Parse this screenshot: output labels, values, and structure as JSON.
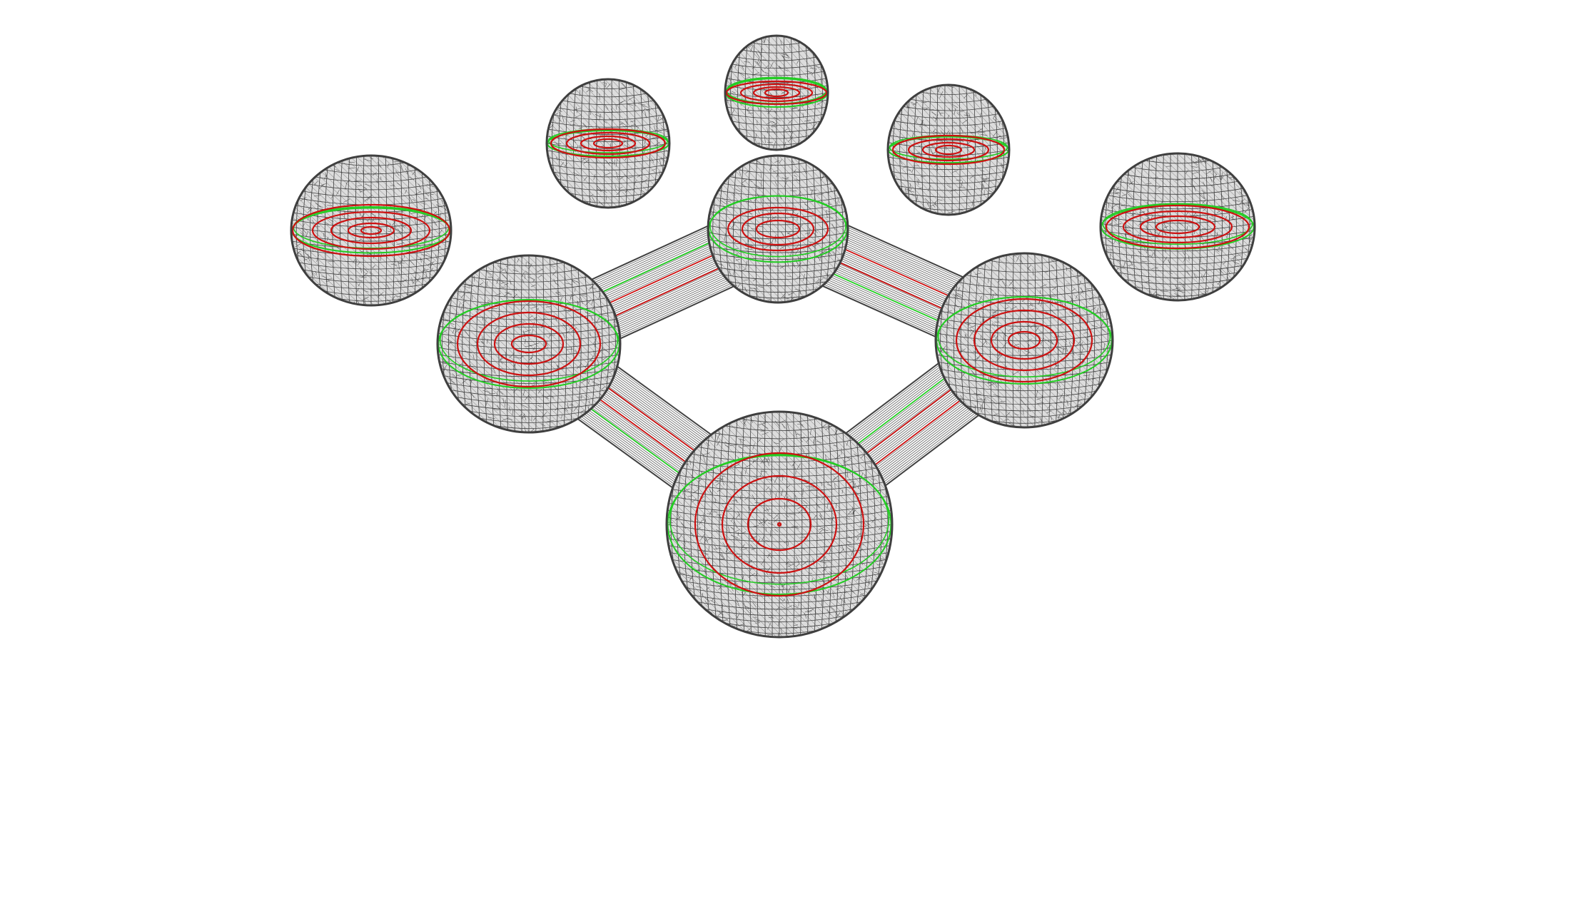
{
  "scene": {
    "background_color": "#ffffff",
    "mesh_color": "#3f3f3f",
    "contour_color": "#cc1111",
    "boundary_color": "#22cc22",
    "object_count": 9
  }
}
